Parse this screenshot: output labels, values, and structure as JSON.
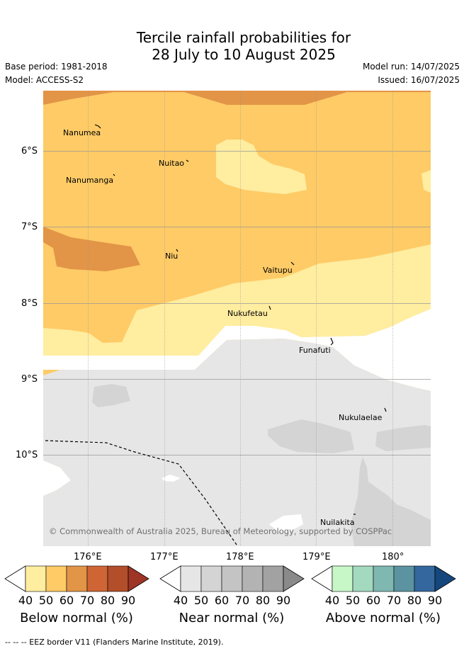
{
  "title": {
    "line1": "Tercile rainfall probabilities for",
    "line2": "28 July to 10 August 2025"
  },
  "meta": {
    "base_period": "Base period: 1981-2018",
    "model": "Model: ACCESS-S2",
    "model_run": "Model run: 14/07/2025",
    "issued": "Issued: 16/07/2025"
  },
  "map": {
    "lat_labels": [
      "6°S",
      "7°S",
      "8°S",
      "9°S",
      "10°S"
    ],
    "lon_labels": [
      "176°E",
      "177°E",
      "178°E",
      "179°E",
      "180°"
    ],
    "places": [
      "Nanumea",
      "Nuitao",
      "Nanumanga",
      "Niu",
      "Vaitupu",
      "Nukufetau",
      "Funafuti",
      "Nukulaelae",
      "Nuilakita"
    ],
    "copyright": "© Commonwealth of Australia 2025, Bureau of Meteorology, supported by COSPPac",
    "colors": {
      "below_40": "#FFEDA0",
      "below_50": "#FECB66",
      "below_60": "#E29447",
      "near_40": "#E6E6E6",
      "near_50": "#D4D4D4"
    }
  },
  "colorbars": [
    {
      "title": "Below normal (%)",
      "ticks": [
        "40",
        "50",
        "60",
        "70",
        "80",
        "90"
      ],
      "colors": [
        "#FFEDA0",
        "#FECB66",
        "#E29447",
        "#CF6534",
        "#B24E2A",
        "#9E3526"
      ]
    },
    {
      "title": "Near normal (%)",
      "ticks": [
        "40",
        "50",
        "60",
        "70",
        "80",
        "90"
      ],
      "colors": [
        "#E6E6E6",
        "#D4D4D4",
        "#C4C4C4",
        "#B3B3B3",
        "#A2A2A2",
        "#8A8A8A"
      ]
    },
    {
      "title": "Above normal (%)",
      "ticks": [
        "40",
        "50",
        "60",
        "70",
        "80",
        "90"
      ],
      "colors": [
        "#C7F7C7",
        "#A2D9BF",
        "#7FB7B1",
        "#5B93A1",
        "#33679E",
        "#16477C"
      ]
    }
  ],
  "footer": "--  --  -- EEZ border V11 (Flanders Marine Institute, 2019)."
}
